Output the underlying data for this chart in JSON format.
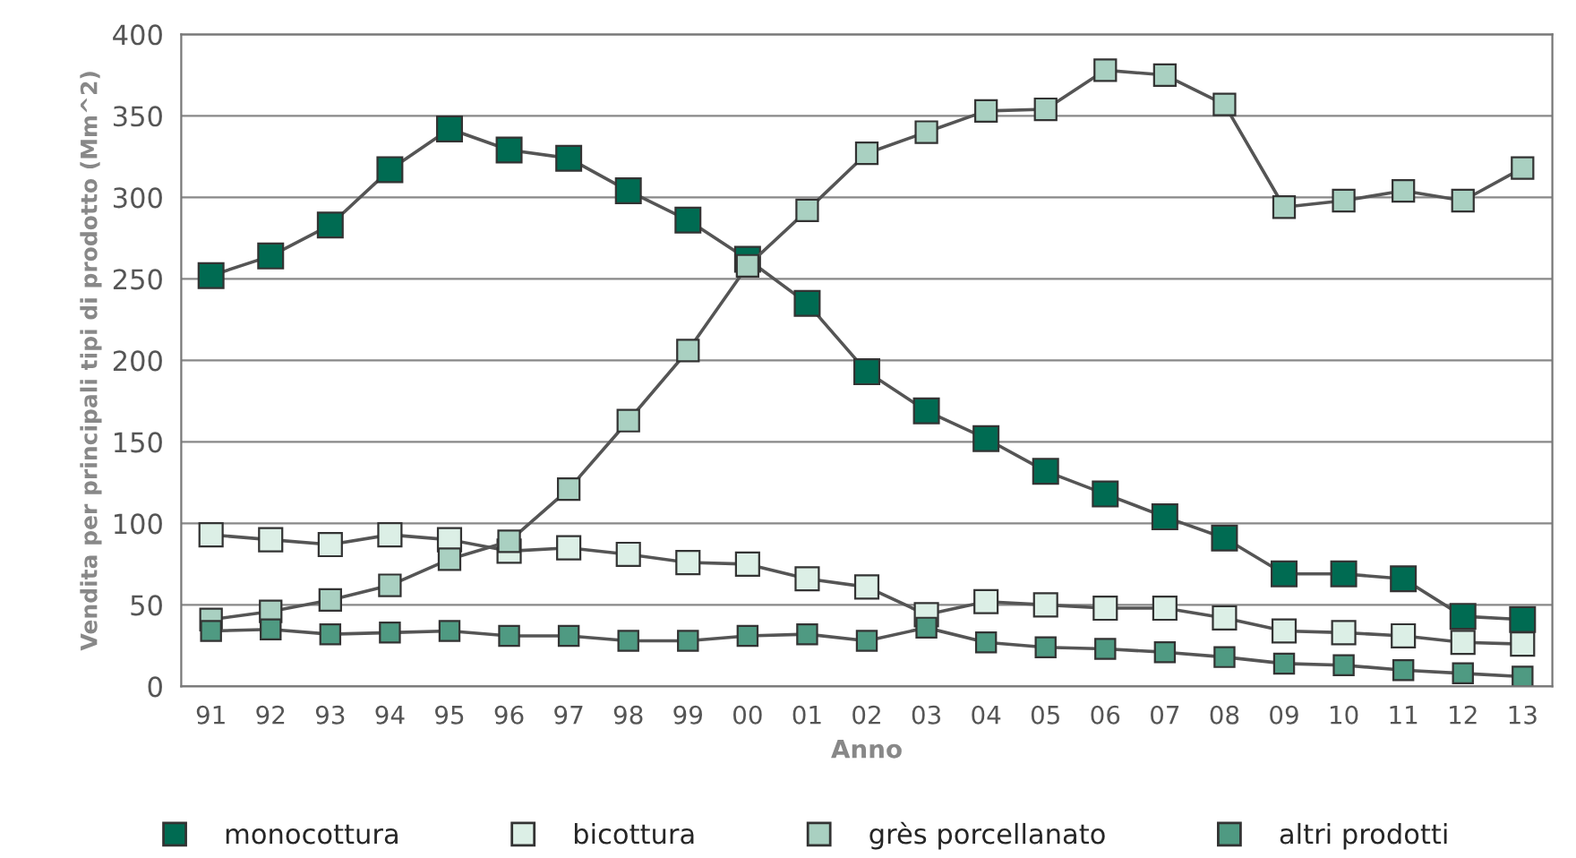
{
  "chart_data": {
    "type": "line",
    "xlabel": "Anno",
    "ylabel": "Vendita per principali tipi di prodotto (Mm^2)",
    "categories": [
      "91",
      "92",
      "93",
      "94",
      "95",
      "96",
      "97",
      "98",
      "99",
      "00",
      "01",
      "02",
      "03",
      "04",
      "05",
      "06",
      "07",
      "08",
      "09",
      "10",
      "11",
      "12",
      "13"
    ],
    "ylim": [
      0,
      400
    ],
    "yticks": [
      0,
      50,
      100,
      150,
      200,
      250,
      300,
      350,
      400
    ],
    "grid": "y",
    "legend": "bottom",
    "marker": "square",
    "line_style": "solid",
    "series": [
      {
        "name": "monocottura",
        "color": "#006b52",
        "values": [
          252,
          264,
          283,
          317,
          342,
          329,
          324,
          304,
          286,
          262,
          235,
          193,
          169,
          152,
          132,
          118,
          104,
          91,
          69,
          69,
          66,
          43,
          41
        ]
      },
      {
        "name": "bicottura",
        "color": "#dcefe6",
        "values": [
          93,
          90,
          87,
          93,
          90,
          83,
          85,
          81,
          76,
          75,
          66,
          61,
          44,
          52,
          50,
          48,
          48,
          42,
          34,
          33,
          31,
          27,
          26
        ]
      },
      {
        "name": "grès porcellanato",
        "color": "#a9d0c1",
        "values": [
          41,
          46,
          53,
          62,
          78,
          89,
          121,
          163,
          206,
          258,
          292,
          327,
          340,
          353,
          354,
          378,
          375,
          357,
          294,
          298,
          304,
          298,
          318
        ]
      },
      {
        "name": "altri prodotti",
        "color": "#4f9a82",
        "values": [
          34,
          35,
          32,
          33,
          34,
          31,
          31,
          28,
          28,
          31,
          32,
          28,
          36,
          27,
          24,
          23,
          21,
          18,
          14,
          13,
          10,
          8,
          6
        ]
      }
    ]
  }
}
